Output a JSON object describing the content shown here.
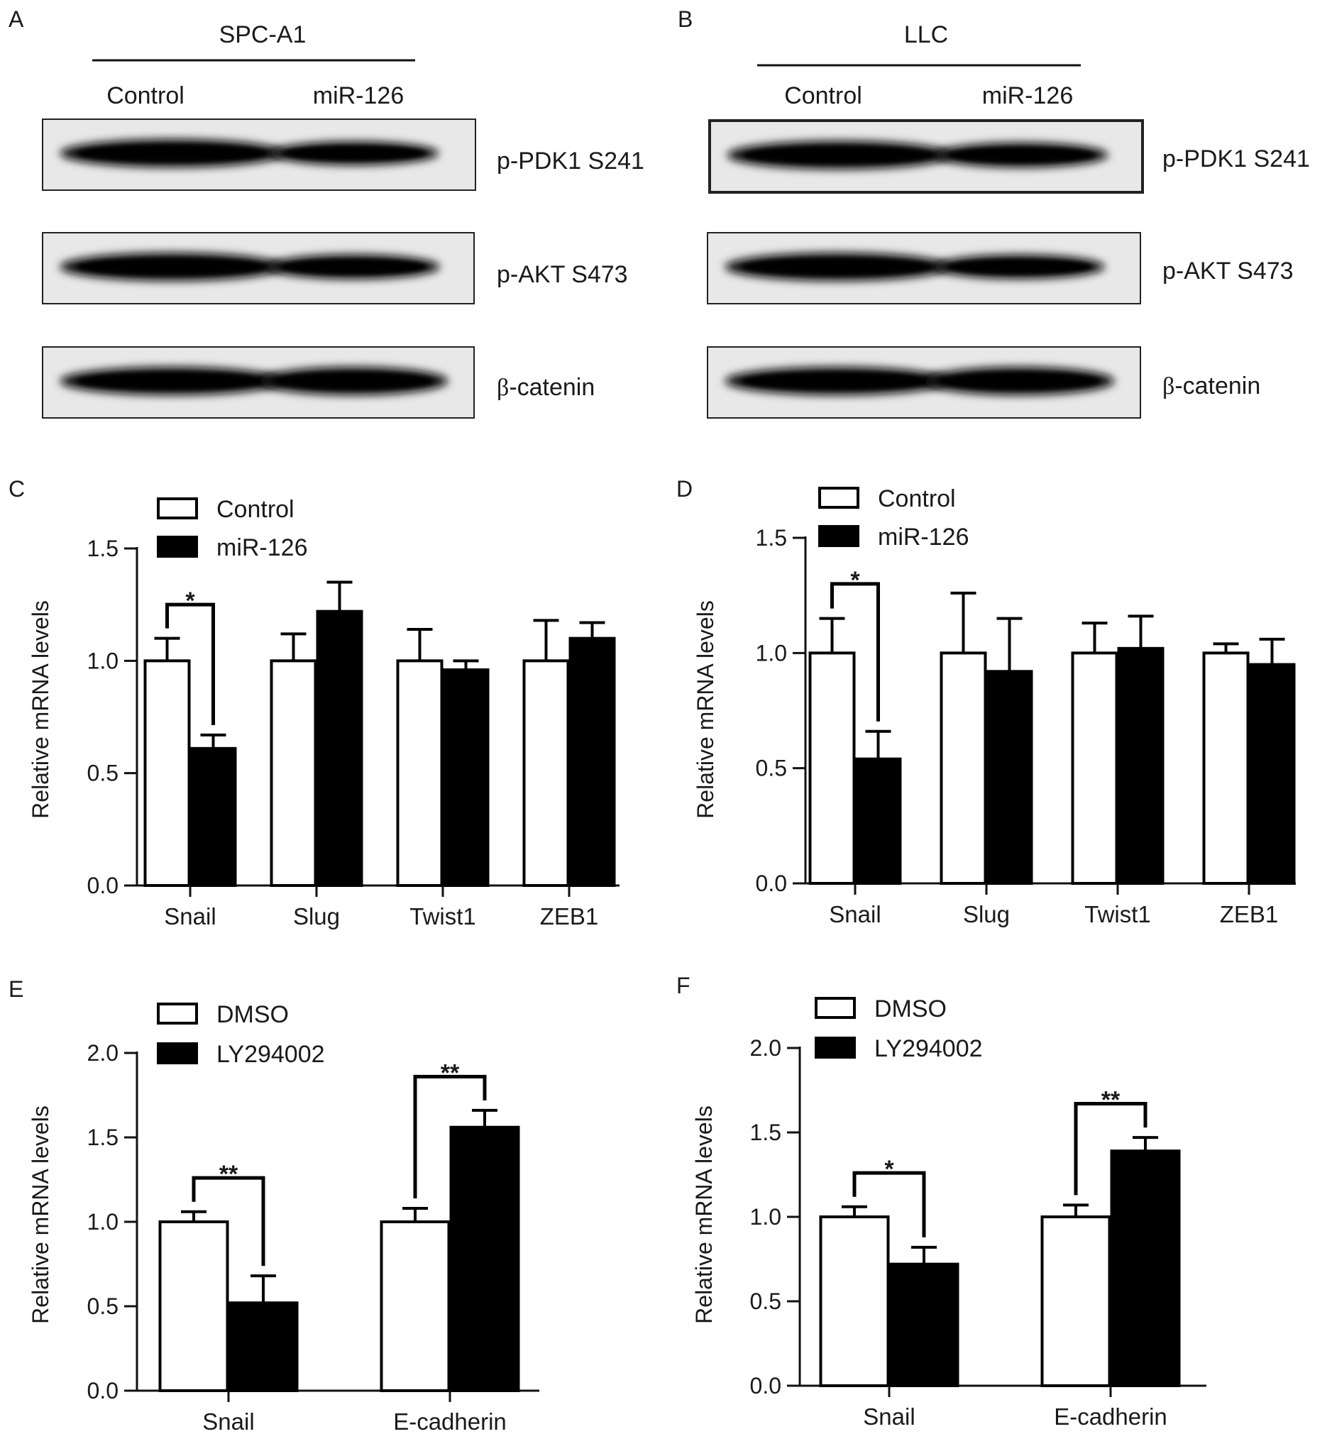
{
  "blots": [
    {
      "panel": "A",
      "cell_line": "SPC-A1",
      "lanes": [
        "Control",
        "miR-126"
      ],
      "bands": [
        {
          "label": "p-PDK1 S241",
          "intensity": [
            1.0,
            0.55
          ]
        },
        {
          "label": "p-AKT S473",
          "intensity": [
            1.0,
            0.65
          ]
        },
        {
          "label": "β-catenin",
          "intensity": [
            1.0,
            1.0
          ]
        }
      ]
    },
    {
      "panel": "B",
      "cell_line": "LLC",
      "lanes": [
        "Control",
        "miR-126"
      ],
      "bands": [
        {
          "label": "p-PDK1 S241",
          "intensity": [
            1.0,
            0.65
          ]
        },
        {
          "label": "p-AKT S473",
          "intensity": [
            1.0,
            0.6
          ]
        },
        {
          "label": "β-catenin",
          "intensity": [
            1.0,
            1.0
          ]
        }
      ]
    }
  ],
  "chart_data": [
    {
      "panel": "C",
      "type": "bar",
      "categories": [
        "Snail",
        "Slug",
        "Twist1",
        "ZEB1"
      ],
      "series": [
        {
          "name": "Control",
          "values": [
            1.0,
            1.0,
            1.0,
            1.0
          ],
          "errors": [
            0.1,
            0.12,
            0.14,
            0.18
          ],
          "color": "#ffffff"
        },
        {
          "name": "miR-126",
          "values": [
            0.61,
            1.22,
            0.96,
            1.1
          ],
          "errors": [
            0.06,
            0.13,
            0.04,
            0.07
          ],
          "color": "#000000"
        }
      ],
      "ylabel": "Relative mRNA levels",
      "ylim": [
        0,
        1.5
      ],
      "yticks": [
        "0.0",
        "0.5",
        "1.0",
        "1.5"
      ],
      "significance": [
        {
          "category": "Snail",
          "label": "*"
        }
      ]
    },
    {
      "panel": "D",
      "type": "bar",
      "categories": [
        "Snail",
        "Slug",
        "Twist1",
        "ZEB1"
      ],
      "series": [
        {
          "name": "Control",
          "values": [
            1.0,
            1.0,
            1.0,
            1.0
          ],
          "errors": [
            0.15,
            0.26,
            0.13,
            0.04
          ],
          "color": "#ffffff"
        },
        {
          "name": "miR-126",
          "values": [
            0.54,
            0.92,
            1.02,
            0.95
          ],
          "errors": [
            0.12,
            0.23,
            0.14,
            0.11
          ],
          "color": "#000000"
        }
      ],
      "ylabel": "Relative mRNA levels",
      "ylim": [
        0,
        1.5
      ],
      "yticks": [
        "0.0",
        "0.5",
        "1.0",
        "1.5"
      ],
      "significance": [
        {
          "category": "Snail",
          "label": "*"
        }
      ]
    },
    {
      "panel": "E",
      "type": "bar",
      "categories": [
        "Snail",
        "E-cadherin"
      ],
      "series": [
        {
          "name": "DMSO",
          "values": [
            1.0,
            1.0
          ],
          "errors": [
            0.06,
            0.08
          ],
          "color": "#ffffff"
        },
        {
          "name": "LY294002",
          "values": [
            0.52,
            1.56
          ],
          "errors": [
            0.16,
            0.1
          ],
          "color": "#000000"
        }
      ],
      "ylabel": "Relative mRNA levels",
      "ylim": [
        0,
        2.0
      ],
      "yticks": [
        "0.0",
        "0.5",
        "1.0",
        "1.5",
        "2.0"
      ],
      "significance": [
        {
          "category": "Snail",
          "label": "**"
        },
        {
          "category": "E-cadherin",
          "label": "**"
        }
      ]
    },
    {
      "panel": "F",
      "type": "bar",
      "categories": [
        "Snail",
        "E-cadherin"
      ],
      "series": [
        {
          "name": "DMSO",
          "values": [
            1.0,
            1.0
          ],
          "errors": [
            0.06,
            0.07
          ],
          "color": "#ffffff"
        },
        {
          "name": "LY294002",
          "values": [
            0.72,
            1.39
          ],
          "errors": [
            0.1,
            0.08
          ],
          "color": "#000000"
        }
      ],
      "ylabel": "Relative mRNA levels",
      "ylim": [
        0,
        2.0
      ],
      "yticks": [
        "0.0",
        "0.5",
        "1.0",
        "1.5",
        "2.0"
      ],
      "significance": [
        {
          "category": "Snail",
          "label": "*"
        },
        {
          "category": "E-cadherin",
          "label": "**"
        }
      ]
    }
  ]
}
